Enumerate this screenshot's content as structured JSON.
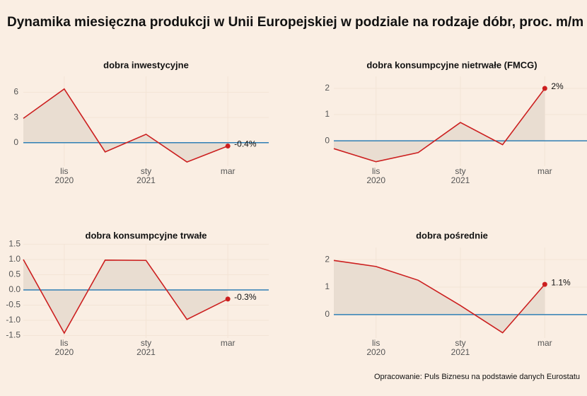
{
  "title": "Dynamika miesięczna produkcji w Unii Europejskiej w podziale na rodzaje dóbr, proc. m/m",
  "source": "Opracowanie: Puls Biznesu na podstawie danych Eurostatu",
  "chart_data": [
    {
      "type": "area",
      "title": "dobra inwestycyjne",
      "categories": [
        null,
        "lis",
        null,
        "sty",
        null,
        "mar"
      ],
      "category_years": [
        null,
        "2020",
        null,
        "2021",
        null,
        null
      ],
      "values": [
        2.9,
        6.4,
        -1.1,
        1.0,
        -2.3,
        -0.4
      ],
      "value_labels": [
        null,
        null,
        null,
        null,
        null,
        "-0.4%"
      ],
      "ylim": [
        -2.8,
        7.9
      ],
      "yticks": [
        0,
        3,
        6
      ],
      "color": "#cc1f1f",
      "fill": "#e9ddd1",
      "baseline_color": "#2f7fb5",
      "grid": true
    },
    {
      "type": "area",
      "title": "dobra konsumpcyjne nietrwałe (FMCG)",
      "categories": [
        null,
        "lis",
        null,
        "sty",
        null,
        "mar"
      ],
      "category_years": [
        null,
        "2020",
        null,
        "2021",
        null,
        null
      ],
      "values": [
        -0.3,
        -0.8,
        -0.45,
        0.7,
        -0.15,
        2.0
      ],
      "value_labels": [
        null,
        null,
        null,
        null,
        null,
        "2%"
      ],
      "ylim": [
        -0.97,
        2.46
      ],
      "yticks": [
        0,
        1,
        2
      ],
      "color": "#cc1f1f",
      "fill": "#e9ddd1",
      "baseline_color": "#2f7fb5",
      "grid": true
    },
    {
      "type": "area",
      "title": "dobra konsumpcyjne trwałe",
      "categories": [
        null,
        "lis",
        null,
        "sty",
        null,
        "mar"
      ],
      "category_years": [
        null,
        "2020",
        null,
        "2021",
        null,
        null
      ],
      "values": [
        1.0,
        -1.42,
        0.98,
        0.97,
        -0.97,
        -0.3
      ],
      "value_labels": [
        null,
        null,
        null,
        null,
        null,
        "-0.3%"
      ],
      "ylim": [
        -1.58,
        1.51
      ],
      "yticks": [
        -1.5,
        {
          "value": -1,
          "label": "-1.0"
        },
        -0.5,
        {
          "value": 0,
          "label": "0.0"
        },
        0.5,
        {
          "value": 1,
          "label": "1.0"
        },
        1.5
      ],
      "color": "#cc1f1f",
      "fill": "#e9ddd1",
      "baseline_color": "#2f7fb5",
      "grid": true
    },
    {
      "type": "area",
      "title": "dobra pośrednie",
      "categories": [
        null,
        "lis",
        null,
        "sty",
        null,
        "mar"
      ],
      "category_years": [
        null,
        "2020",
        null,
        "2021",
        null,
        null
      ],
      "values": [
        1.97,
        1.75,
        1.25,
        0.33,
        -0.66,
        1.1
      ],
      "value_labels": [
        null,
        null,
        null,
        null,
        null,
        "1.1%"
      ],
      "ylim": [
        -0.85,
        2.44
      ],
      "yticks": [
        0,
        1,
        2
      ],
      "color": "#cc1f1f",
      "fill": "#e9ddd1",
      "baseline_color": "#2f7fb5",
      "grid": true
    }
  ]
}
